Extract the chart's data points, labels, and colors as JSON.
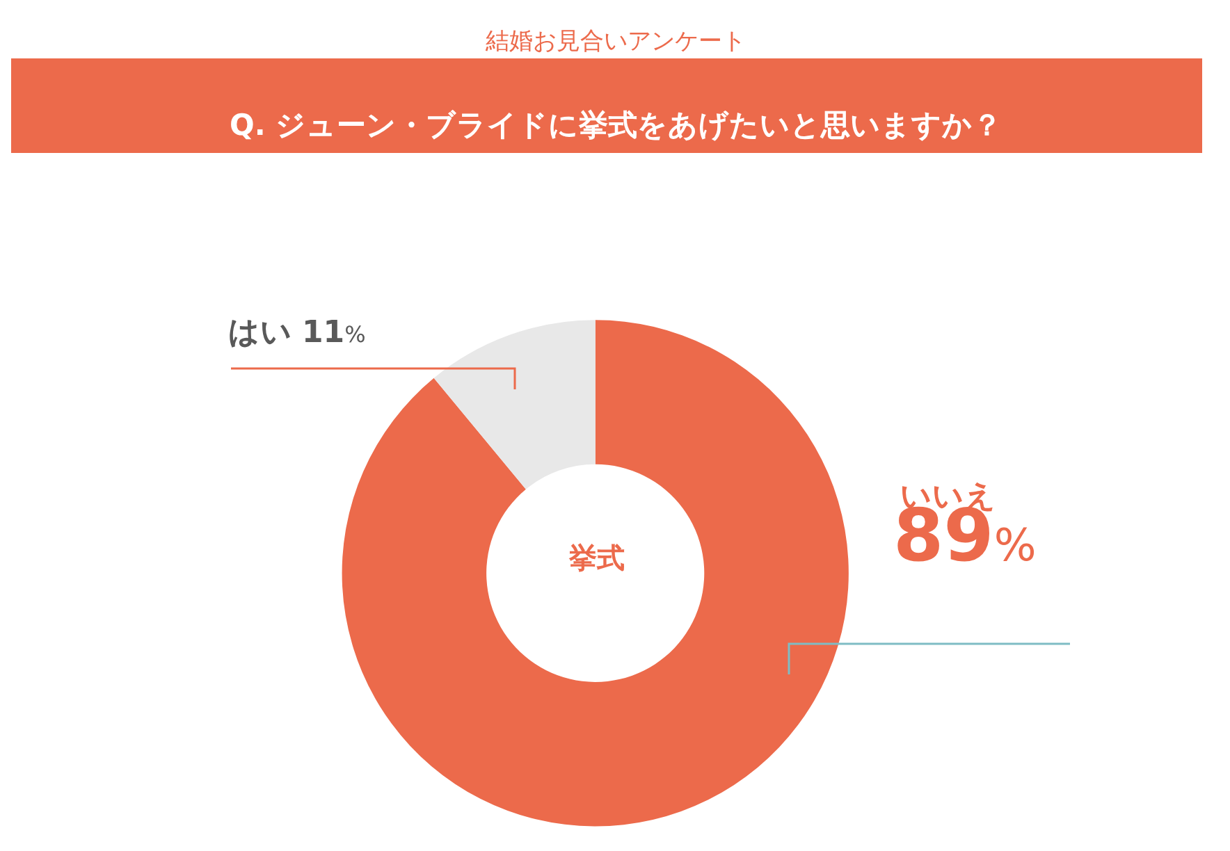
{
  "chart_data": {
    "type": "donut",
    "subtitle": "結婚お見合いアンケート",
    "title": "Q. ジューン・ブライドに挙式をあげたいと思いますか？",
    "categories": [
      "いいえ",
      "はい"
    ],
    "values": [
      89,
      11
    ],
    "value_labels": [
      "89%",
      "11%"
    ],
    "colors": [
      "#ec6a4b",
      "#e8e8e8"
    ],
    "annotations": [
      "挙式"
    ],
    "legend": false
  }
}
